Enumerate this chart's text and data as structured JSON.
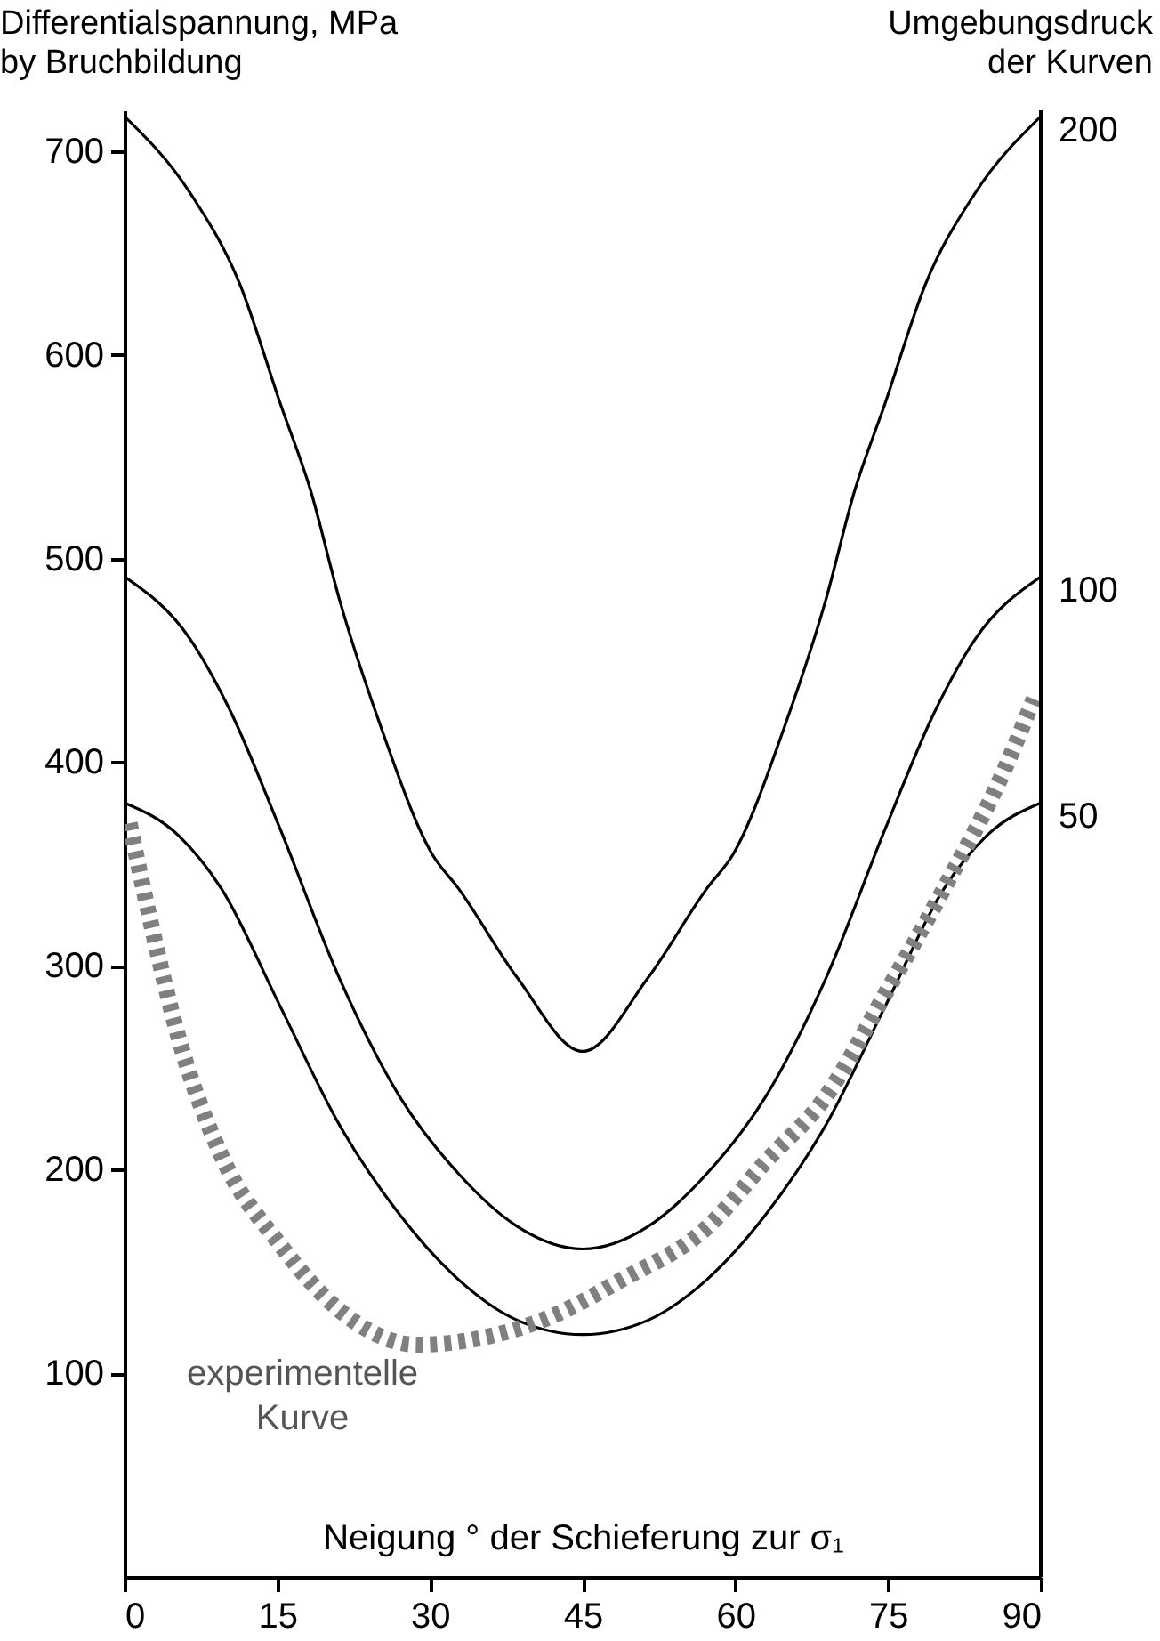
{
  "chart_data": {
    "type": "line",
    "ylabel": "Differentialspannung, MPa\nby Bruchbildung",
    "legend_title": "Umgebungsdruck\nder Kurven",
    "xlabel": "Neigung ° der Schieferung zur σ₁",
    "xlim": [
      0,
      90
    ],
    "xticks": [
      0,
      15,
      30,
      45,
      60,
      75,
      90
    ],
    "ylim": [
      0,
      720
    ],
    "yticks": [
      100,
      200,
      300,
      400,
      500,
      600,
      700
    ],
    "grid": false,
    "series": [
      {
        "name": "200",
        "color": "#000000",
        "line_style": "solid",
        "x": [
          0,
          6.5,
          11.3,
          15.3,
          18.3,
          21.1,
          25.2,
          30.2,
          32.8,
          38.6,
          45,
          51.4,
          57.2,
          59.8,
          64.8,
          68.9,
          71.7,
          74.7,
          78.7,
          83.5,
          90
        ],
        "values": [
          717,
          679,
          635,
          576,
          533,
          480,
          417,
          355,
          338,
          294,
          258,
          294,
          338,
          355,
          417,
          480,
          533,
          576,
          635,
          679,
          717
        ]
      },
      {
        "name": "100",
        "color": "#000000",
        "line_style": "solid",
        "x": [
          0,
          6.5,
          10.4,
          15.3,
          21.1,
          27,
          32.8,
          38.6,
          45,
          51.4,
          57.2,
          63,
          68.9,
          74.7,
          79.6,
          83.5,
          90
        ],
        "values": [
          491,
          460,
          425,
          367,
          294,
          236,
          198,
          172,
          161,
          172,
          198,
          236,
          294,
          367,
          425,
          460,
          491
        ]
      },
      {
        "name": "50",
        "color": "#000000",
        "line_style": "solid",
        "x": [
          0,
          5.3,
          9.5,
          15.3,
          21.1,
          27,
          32.8,
          38.6,
          45,
          51.4,
          57.2,
          63,
          68.9,
          74.7,
          80.5,
          84.7,
          90
        ],
        "values": [
          380,
          364,
          338,
          280,
          222,
          178,
          146,
          126,
          119,
          126,
          146,
          178,
          222,
          280,
          338,
          364,
          380
        ]
      },
      {
        "name": "experimentelle Kurve",
        "color": "#808080",
        "line_style": "dashed",
        "x": [
          0.5,
          2.5,
          5.3,
          9.5,
          15.3,
          21.1,
          28.8,
          35.7,
          42,
          48.5,
          57.3,
          63,
          68.9,
          74.7,
          80.5,
          86.4,
          89.3
        ],
        "values": [
          370,
          323,
          265,
          207,
          163,
          131,
          114,
          118,
          128,
          145,
          172,
          204,
          236,
          286,
          338,
          396,
          431
        ]
      }
    ]
  }
}
